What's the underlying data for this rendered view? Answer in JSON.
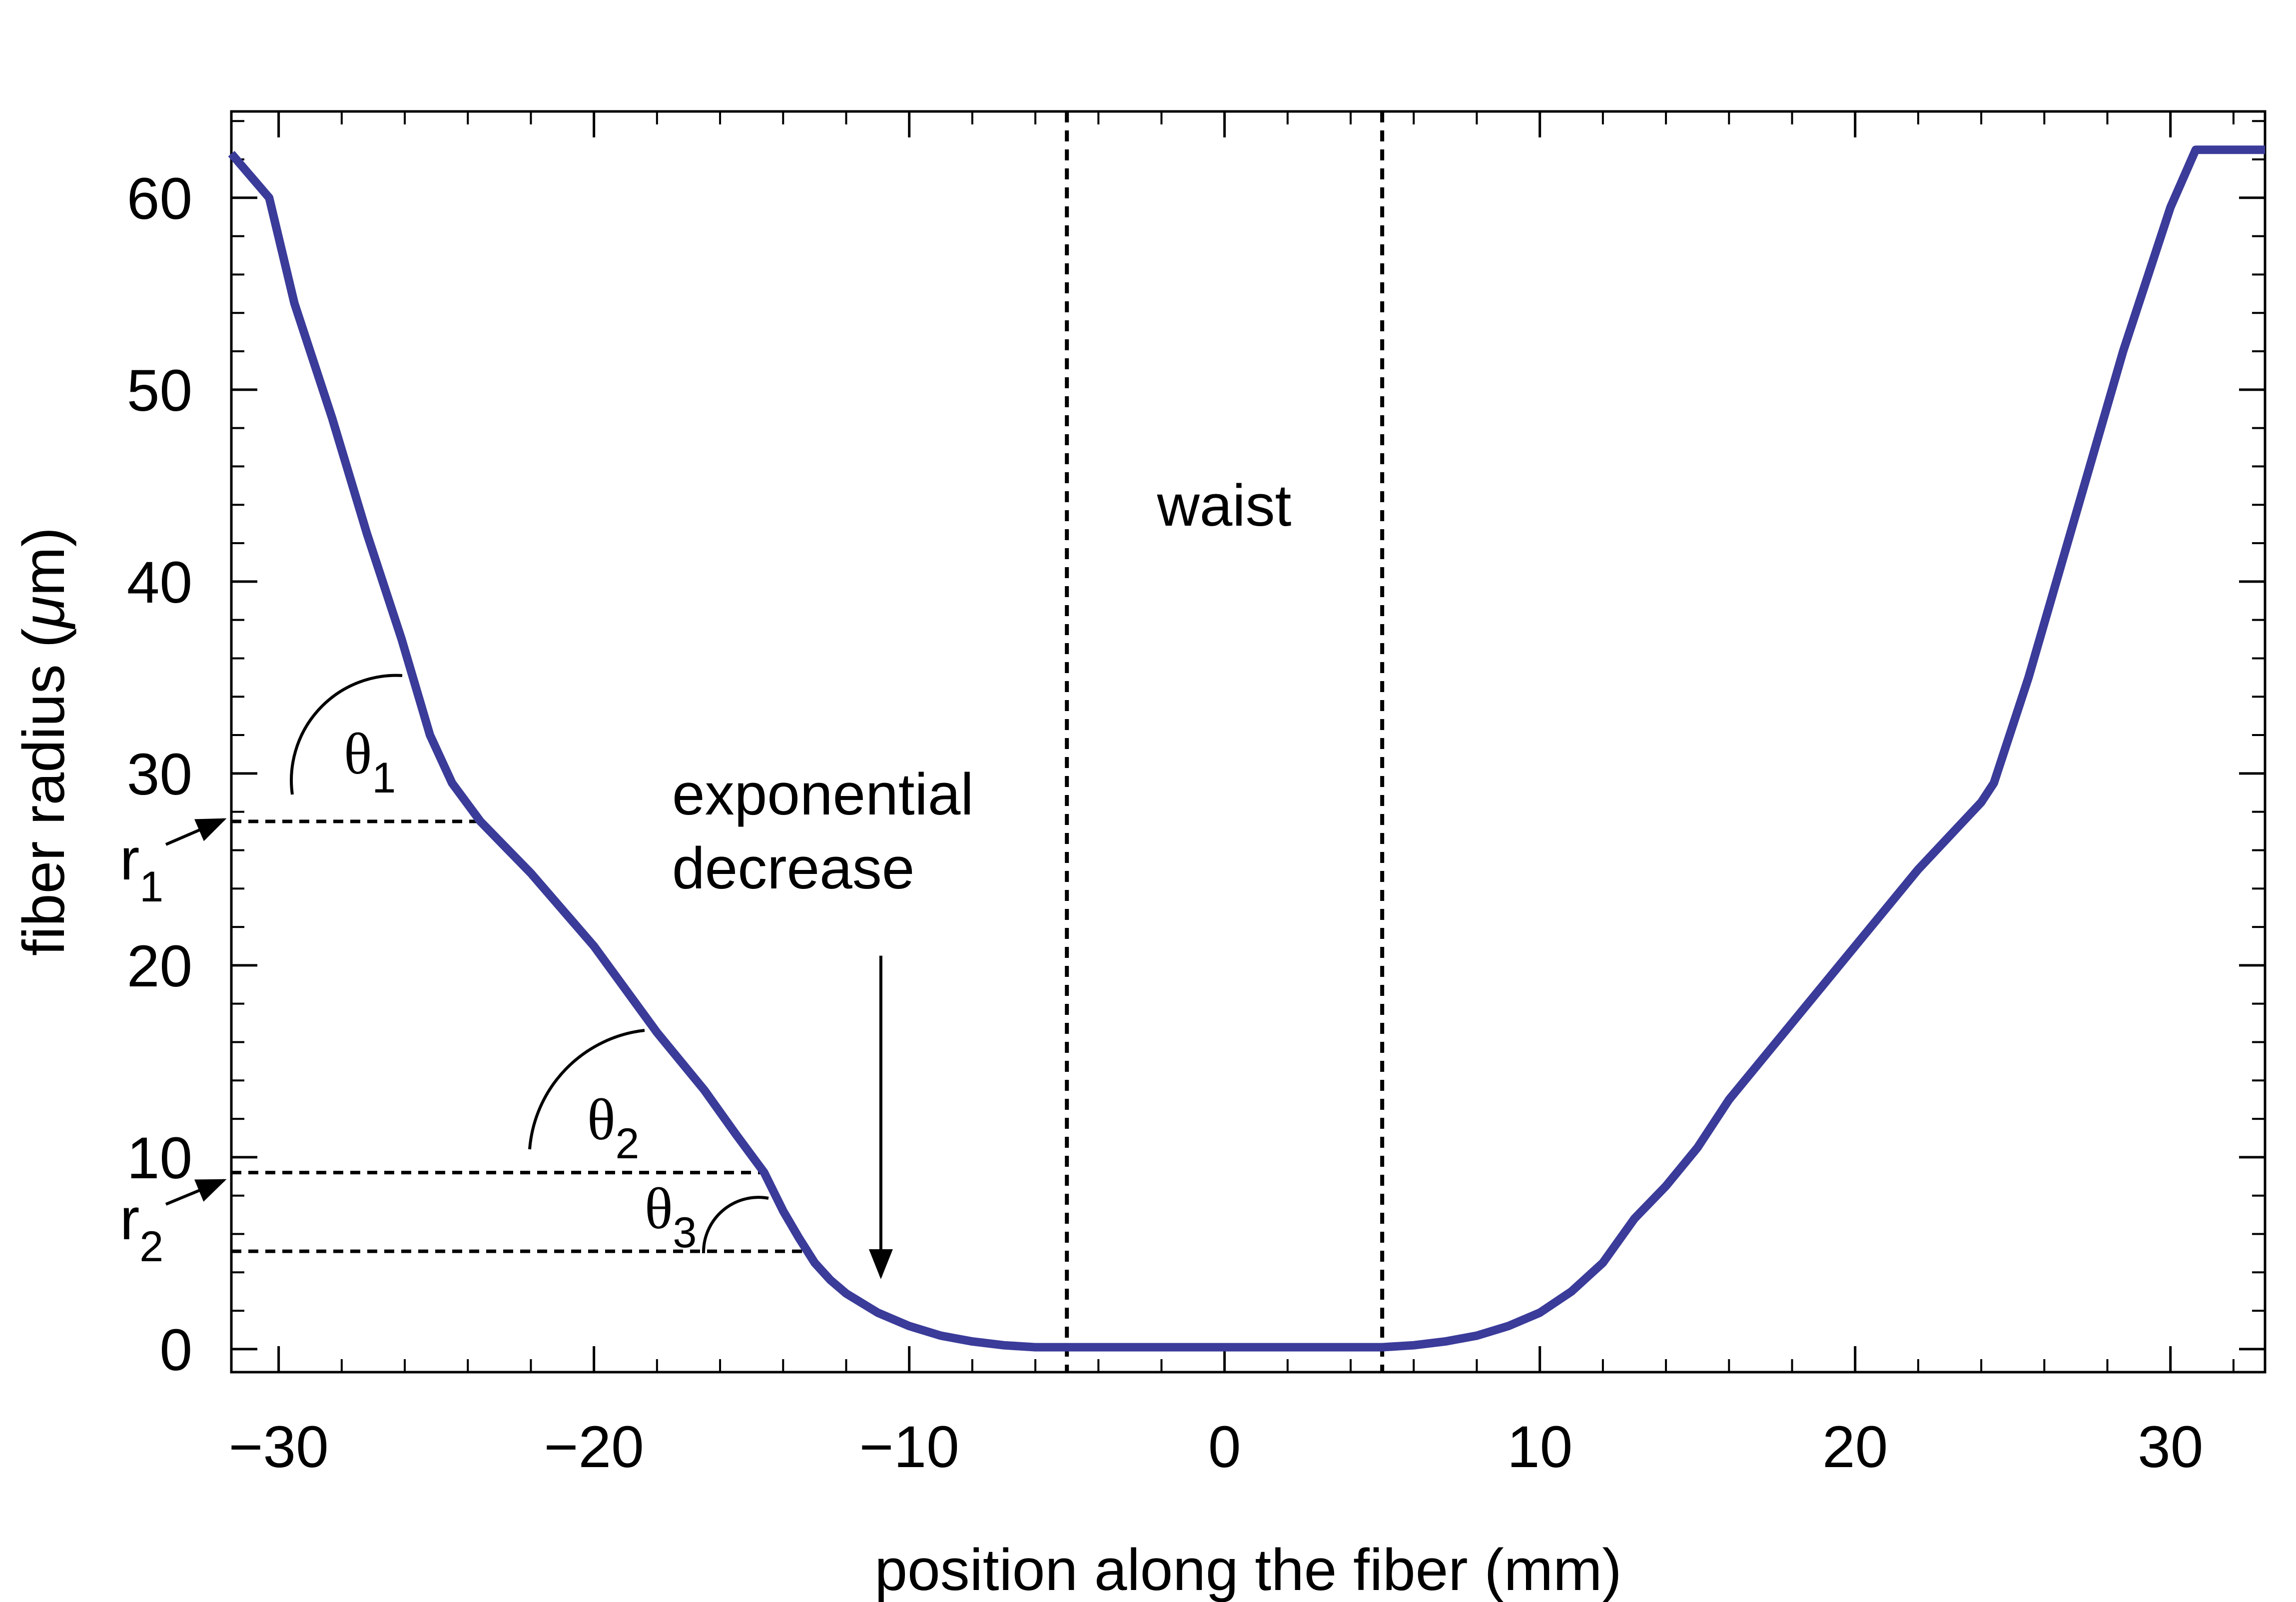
{
  "chart_data": {
    "type": "line",
    "title": "",
    "xlabel": "position along the fiber (mm)",
    "ylabel_prefix": "fiber radius (",
    "ylabel_unit_mu": "μ",
    "ylabel_unit_rest": "m)",
    "xlim": [
      -31.5,
      33
    ],
    "ylim": [
      -1.2,
      64.5
    ],
    "x_ticks": [
      -30,
      -20,
      -10,
      0,
      10,
      20,
      30
    ],
    "x_tick_labels": [
      "−30",
      "−20",
      "−10",
      "0",
      "10",
      "20",
      "30"
    ],
    "x_minor_step": 2,
    "y_ticks": [
      0,
      10,
      20,
      30,
      40,
      50,
      60
    ],
    "y_tick_labels": [
      "0",
      "10",
      "20",
      "30",
      "40",
      "50",
      "60"
    ],
    "y_minor_step": 2,
    "grid": false,
    "line_color": "#3b3b9a",
    "series": [
      {
        "name": "fiber radius profile",
        "x": [
          -31.5,
          -30.3,
          -29.5,
          -28.3,
          -27.2,
          -26.1,
          -25.2,
          -24.5,
          -23.6,
          -22.0,
          -20.0,
          -18.0,
          -16.5,
          -15.5,
          -14.6,
          -14.0,
          -13.5,
          -13.0,
          -12.5,
          -12.0,
          -11.0,
          -10.0,
          -9.0,
          -8.0,
          -7.0,
          -6.0,
          -5.0,
          0,
          5.0,
          6.0,
          7.0,
          8.0,
          9.0,
          10.0,
          11.0,
          12.0,
          13.0,
          14.0,
          15.0,
          16.0,
          18.0,
          20.0,
          22.0,
          24.0,
          24.4,
          25.5,
          27.0,
          28.5,
          30.0,
          30.8,
          33.0
        ],
        "y": [
          62.3,
          60.0,
          54.5,
          48.5,
          42.5,
          37.0,
          32.0,
          29.5,
          27.5,
          24.8,
          21.0,
          16.5,
          13.5,
          11.2,
          9.2,
          7.2,
          5.8,
          4.5,
          3.6,
          2.9,
          1.9,
          1.2,
          0.7,
          0.4,
          0.2,
          0.1,
          0.1,
          0.1,
          0.1,
          0.2,
          0.4,
          0.7,
          1.2,
          1.9,
          3.0,
          4.5,
          6.8,
          8.5,
          10.5,
          13.0,
          17.0,
          21.0,
          25.0,
          28.5,
          29.5,
          35.0,
          43.5,
          52.0,
          59.5,
          62.5,
          62.5
        ]
      }
    ],
    "annotations": {
      "waist_label": "waist",
      "waist_bounds_x": [
        -5,
        5
      ],
      "exp_label_line1": "exponential",
      "exp_label_line2": "decrease",
      "exp_arrow_x": -10.9,
      "exp_arrow_y_from": 20.5,
      "exp_arrow_y_to": 3.8,
      "r1_value": 27.5,
      "r1_end_x": -23.6,
      "r2_value": 9.2,
      "r2_end_x": -14.6,
      "r3_value": 5.1,
      "r3_end_x": -13.4,
      "theta_symbol": "θ",
      "r_symbol": "r",
      "theta1_sub": "1",
      "theta2_sub": "2",
      "theta3_sub": "3",
      "r1_sub": "1",
      "r2_sub": "2"
    }
  }
}
